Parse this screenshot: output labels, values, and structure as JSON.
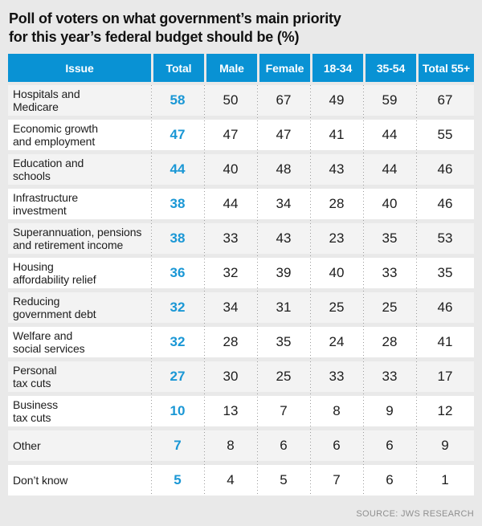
{
  "title": {
    "text": "Poll of voters on what government’s main priority for this year’s federal budget should be (%)",
    "lines": [
      "Poll of voters on what government’s main priority",
      "for this year’s federal budget should be (%)"
    ]
  },
  "chart_data": {
    "type": "table",
    "title": "Poll of voters on what government’s main priority for this year’s federal budget should be (%)",
    "unit": "%",
    "columns": [
      "Issue",
      "Total",
      "Male",
      "Female",
      "18-34",
      "35-54",
      "Total 55+"
    ],
    "rows": [
      {
        "issue": "Hospitals and Medicare",
        "issue_display": "Hospitals and\nMedicare",
        "total": 58,
        "male": 50,
        "female": 67,
        "age_18_34": 49,
        "age_35_54": 59,
        "total_55_plus": 67
      },
      {
        "issue": "Economic growth and employment",
        "issue_display": "Economic growth\nand employment",
        "total": 47,
        "male": 47,
        "female": 47,
        "age_18_34": 41,
        "age_35_54": 44,
        "total_55_plus": 55
      },
      {
        "issue": "Education and schools",
        "issue_display": "Education and\nschools",
        "total": 44,
        "male": 40,
        "female": 48,
        "age_18_34": 43,
        "age_35_54": 44,
        "total_55_plus": 46
      },
      {
        "issue": "Infrastructure investment",
        "issue_display": "Infrastructure\ninvestment",
        "total": 38,
        "male": 44,
        "female": 34,
        "age_18_34": 28,
        "age_35_54": 40,
        "total_55_plus": 46
      },
      {
        "issue": "Superannuation, pensions and retirement income",
        "issue_display": "Superannuation, pensions\nand retirement income",
        "total": 38,
        "male": 33,
        "female": 43,
        "age_18_34": 23,
        "age_35_54": 35,
        "total_55_plus": 53
      },
      {
        "issue": "Housing affordability relief",
        "issue_display": "Housing\naffordability relief",
        "total": 36,
        "male": 32,
        "female": 39,
        "age_18_34": 40,
        "age_35_54": 33,
        "total_55_plus": 35
      },
      {
        "issue": "Reducing government debt",
        "issue_display": "Reducing\ngovernment debt",
        "total": 32,
        "male": 34,
        "female": 31,
        "age_18_34": 25,
        "age_35_54": 25,
        "total_55_plus": 46
      },
      {
        "issue": "Welfare and social services",
        "issue_display": "Welfare and\nsocial services",
        "total": 32,
        "male": 28,
        "female": 35,
        "age_18_34": 24,
        "age_35_54": 28,
        "total_55_plus": 41
      },
      {
        "issue": "Personal tax cuts",
        "issue_display": "Personal\ntax cuts",
        "total": 27,
        "male": 30,
        "female": 25,
        "age_18_34": 33,
        "age_35_54": 33,
        "total_55_plus": 17
      },
      {
        "issue": "Business tax cuts",
        "issue_display": "Business\ntax cuts",
        "total": 10,
        "male": 13,
        "female": 7,
        "age_18_34": 8,
        "age_35_54": 9,
        "total_55_plus": 12
      },
      {
        "issue": "Other",
        "issue_display": "Other",
        "total": 7,
        "male": 8,
        "female": 6,
        "age_18_34": 6,
        "age_35_54": 6,
        "total_55_plus": 9
      },
      {
        "issue": "Don’t know",
        "issue_display": "Don’t know",
        "total": 5,
        "male": 4,
        "female": 5,
        "age_18_34": 7,
        "age_35_54": 6,
        "total_55_plus": 1
      }
    ],
    "source": "SOURCE: JWS RESEARCH"
  },
  "colors": {
    "page_background": "#e9e9e9",
    "header_background": "#0992d4",
    "header_text": "#ffffff",
    "total_accent": "#1a97d5",
    "row_shade": "#f3f3f3",
    "row_white": "#ffffff",
    "text": "#1d1d1d",
    "source_text": "#8f8f8f",
    "separator_dots": "#9b9b9b"
  }
}
